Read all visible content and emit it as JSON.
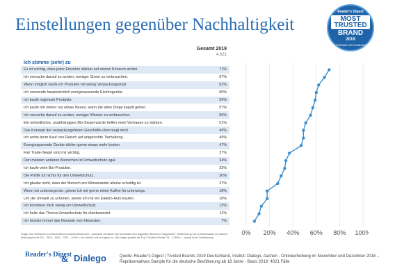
{
  "title": "Einstellungen gegenüber Nachhaltigkeit",
  "badge": {
    "brand": "Reader's Digest",
    "line1": "MOST TRUSTED",
    "line2": "BRAND",
    "year": "2019",
    "sub": "Das Vertrauen der Konsumenten"
  },
  "column": {
    "header": "Gesamt 2019",
    "n": "4.021"
  },
  "group_label": "Ich stimme (sehr) zu",
  "chart_data": {
    "type": "line",
    "orientation": "horizontal",
    "categories": [
      "Es ist wichtig, dass jeder Einzelne stärker auf seinen Konsum achtet.",
      "Ich versuche darauf zu achten, weniger Strom zu verbrauchen.",
      "Wenn möglich kaufe ich Produkte mit wenig Verpackungsmüll.",
      "Ich verwende hauptsächlich energiesparende Elektrogeräte.",
      "Ich kaufe regionale Produkte.",
      "Ich kaufe mir immer nur etwas Neues, wenn die alten Dinge kaputt gehen.",
      "Ich versuche darauf zu achten, weniger Wasser zu verbrauchen.",
      "Ein einheitliches, unabhängiges Bio-Siegel würde helfen mein Vertrauen zu stärken.",
      "Das Konzept der verpackungsfreien Geschäfte überzeugt mich.",
      "Ich achte beim Kauf von Fleisch auf artgerechte Tierhaltung.",
      "Energiesparende Geräte dürfen gerne etwas mehr kosten.",
      "Fair Trade-Siegel sind mir wichtig.",
      "Den meisten anderen Menschen ist Umweltschutz egal.",
      "Ich kaufe viele Bio-Produkte.",
      "Die Politik tut nichts für den Umweltschutz.",
      "Ich glaube nicht, dass der Mensch am Klimawandel alleine schuldig ist.",
      "Wenn ich unterwegs bin, gönne ich mir gerne einen Kaffee für unterwegs.",
      "Um die Umwelt zu schonen, werde ich mir ein Elektro-Auto kaufen.",
      "Ich kümmere mich wenig um Umweltschutz.",
      "Ich halte das Thema Umweltschutz für überbewertet.",
      "Ich besitze immer das Neueste vom Neuesten."
    ],
    "values": [
      71,
      67,
      62,
      60,
      59,
      57,
      55,
      51,
      49,
      49,
      47,
      37,
      34,
      33,
      30,
      27,
      18,
      18,
      13,
      11,
      7
    ],
    "value_labels": [
      "71%",
      "67%",
      "62%",
      "60%",
      "59%",
      "57%",
      "55%",
      "51%",
      "49%",
      "49%",
      "47%",
      "37%",
      "34%",
      "33%",
      "30%",
      "27%",
      "18%",
      "18%",
      "13%",
      "11%",
      "7%"
    ],
    "xlim": [
      0,
      100
    ],
    "xticks": [
      0,
      20,
      40,
      60,
      80,
      100
    ],
    "xtick_labels": [
      "0%",
      "20%",
      "40%",
      "60%",
      "80%",
      "100%"
    ],
    "gridlines": true,
    "series_color": "#3a8fd1"
  },
  "footnote": "Frage zum Vertrauen in verschiedene Industrien/Branchen: „Inwieweit vertrauen Sie persönlich den folgenden Branchen insgesamt?\" Zustimmung mit: 5-Stufenskala; Ich stimme überhaupt nicht 0% – 25% – 50% – 75% – 100% = ich stimme voll und ganz zu. Wir zeigen jeweils die Top 2 Stufen (Punkte 75 – 100%) = „ (sehr) hohe Zustimmung",
  "logos": {
    "readers_digest": "Reader's Digest",
    "ampersand": "&",
    "dialego": "Dialego"
  },
  "source": "Quelle: Reader's Digest | Trusted Brands 2019 Deutschland, Institut: Dialego, Aachen - Onlineerhebung im November und Dezember 2018 – Repräsentatives Sample für die deutsche Bevölkerung ab 18 Jahre - Basis 2019: 4021 Fälle"
}
